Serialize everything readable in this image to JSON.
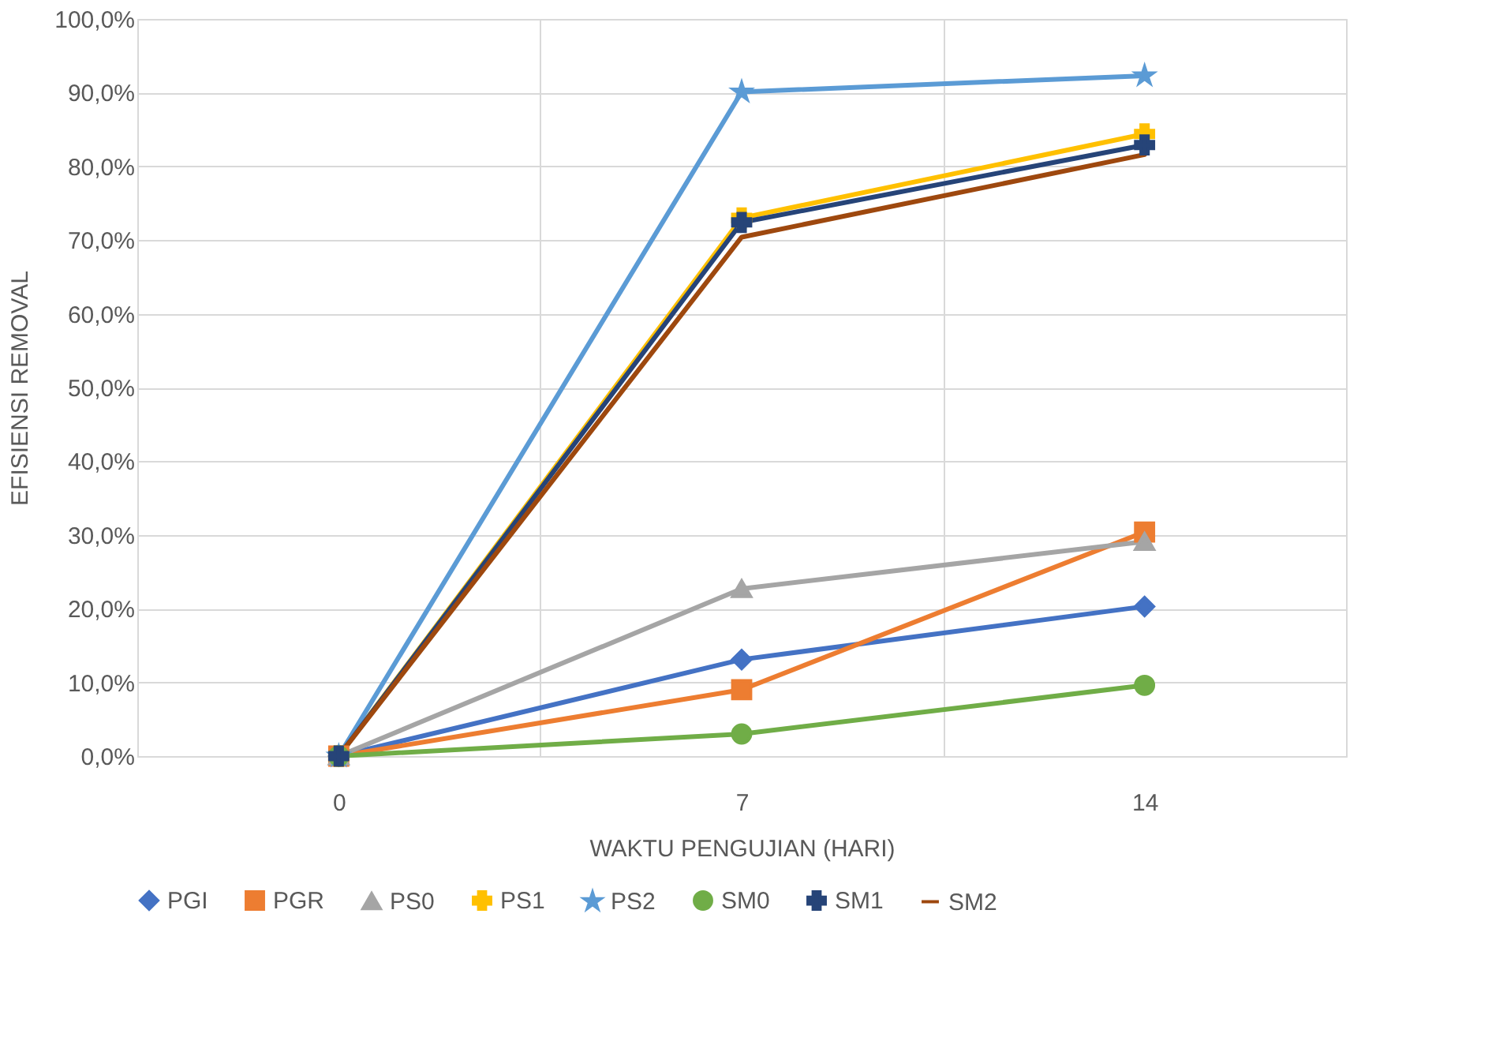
{
  "chart_data": {
    "type": "line",
    "xlabel": "WAKTU PENGUJIAN (HARI)",
    "ylabel": "EFISIENSI REMOVAL",
    "categories": [
      "0",
      "7",
      "14"
    ],
    "ylim": [
      0,
      100
    ],
    "yticks": [
      {
        "value": 0,
        "label": "0,0%"
      },
      {
        "value": 10,
        "label": "10,0%"
      },
      {
        "value": 20,
        "label": "20,0%"
      },
      {
        "value": 30,
        "label": "30,0%"
      },
      {
        "value": 40,
        "label": "40,0%"
      },
      {
        "value": 50,
        "label": "50,0%"
      },
      {
        "value": 60,
        "label": "60,0%"
      },
      {
        "value": 70,
        "label": "70,0%"
      },
      {
        "value": 80,
        "label": "80,0%"
      },
      {
        "value": 90,
        "label": "90,0%"
      },
      {
        "value": 100,
        "label": "100,0%"
      }
    ],
    "grid": true,
    "legend": "bottom",
    "line_style": "solid",
    "series": [
      {
        "name": "PGI",
        "color": "#4472c4",
        "marker": "diamond",
        "values": [
          0,
          13.1,
          20.3
        ]
      },
      {
        "name": "PGR",
        "color": "#ed7d31",
        "marker": "square",
        "values": [
          0,
          9.0,
          30.4
        ]
      },
      {
        "name": "PS0",
        "color": "#a5a5a5",
        "marker": "triangle",
        "values": [
          0,
          22.7,
          29.1
        ]
      },
      {
        "name": "PS1",
        "color": "#ffc000",
        "marker": "cross",
        "values": [
          0,
          73.0,
          84.4
        ]
      },
      {
        "name": "PS2",
        "color": "#5b9bd5",
        "marker": "star",
        "values": [
          0,
          90.1,
          92.3
        ]
      },
      {
        "name": "SM0",
        "color": "#70ad47",
        "marker": "circle",
        "values": [
          0,
          3.0,
          9.6
        ]
      },
      {
        "name": "SM1",
        "color": "#264478",
        "marker": "cross",
        "values": [
          0,
          72.4,
          82.9
        ]
      },
      {
        "name": "SM2",
        "color": "#9e480e",
        "marker": "none",
        "values": [
          0,
          70.4,
          81.6
        ]
      }
    ]
  }
}
